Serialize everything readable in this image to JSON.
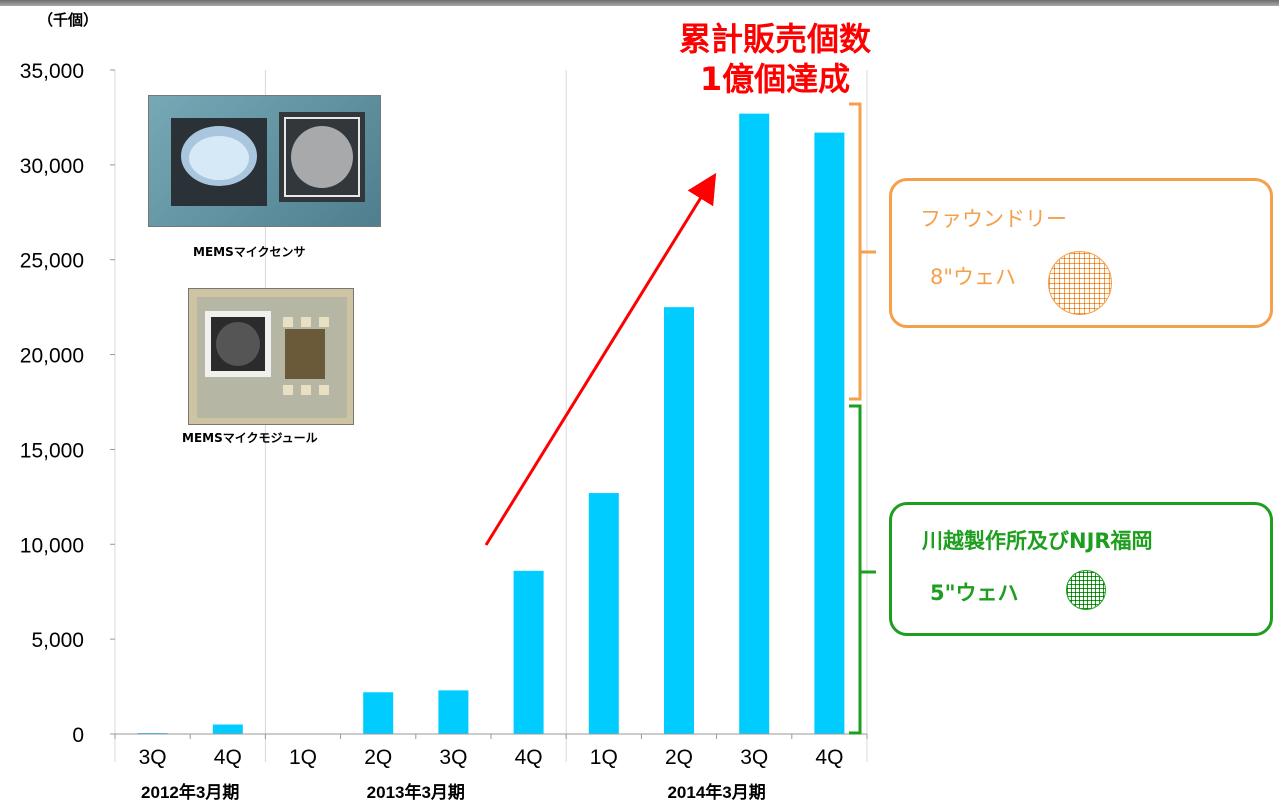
{
  "unit_label": "（千個）",
  "headline": {
    "line1": "累計販売個数",
    "line2": "1億個達成",
    "color": "#ff0000"
  },
  "photos": [
    {
      "caption": "MEMSマイクセンサ",
      "icon": "mems-mic-sensor-photo"
    },
    {
      "caption": "MEMSマイクモジュール",
      "icon": "mems-mic-module-photo"
    }
  ],
  "callouts": {
    "foundry": {
      "title": "ファウンドリー",
      "wafer": "8\"ウェハ",
      "color": "#f5a04a"
    },
    "in_house": {
      "title": "川越製作所及びNJR福岡",
      "wafer": "5\"ウェハ",
      "color": "#1e9e1e"
    }
  },
  "chart_data": {
    "type": "bar",
    "bar_color": "#00ccff",
    "ylim": [
      0,
      35000
    ],
    "yticks": [
      0,
      5000,
      10000,
      15000,
      20000,
      25000,
      30000,
      35000
    ],
    "ytick_labels": [
      "0",
      "5,000",
      "10,000",
      "15,000",
      "20,000",
      "25,000",
      "30,000",
      "35,000"
    ],
    "gridlines": "vertical-group-separators",
    "categories": [
      "3Q",
      "4Q",
      "1Q",
      "2Q",
      "3Q",
      "4Q",
      "1Q",
      "2Q",
      "3Q",
      "4Q"
    ],
    "values": [
      50,
      500,
      0,
      2200,
      2300,
      8600,
      12700,
      22500,
      32700,
      31700
    ],
    "groups": [
      {
        "label": "2012年3月期",
        "categories": 2
      },
      {
        "label": "2013年3月期",
        "categories": 4
      },
      {
        "label": "2014年3月期",
        "categories": 4
      }
    ],
    "annotations": [
      "growth-arrow"
    ]
  }
}
